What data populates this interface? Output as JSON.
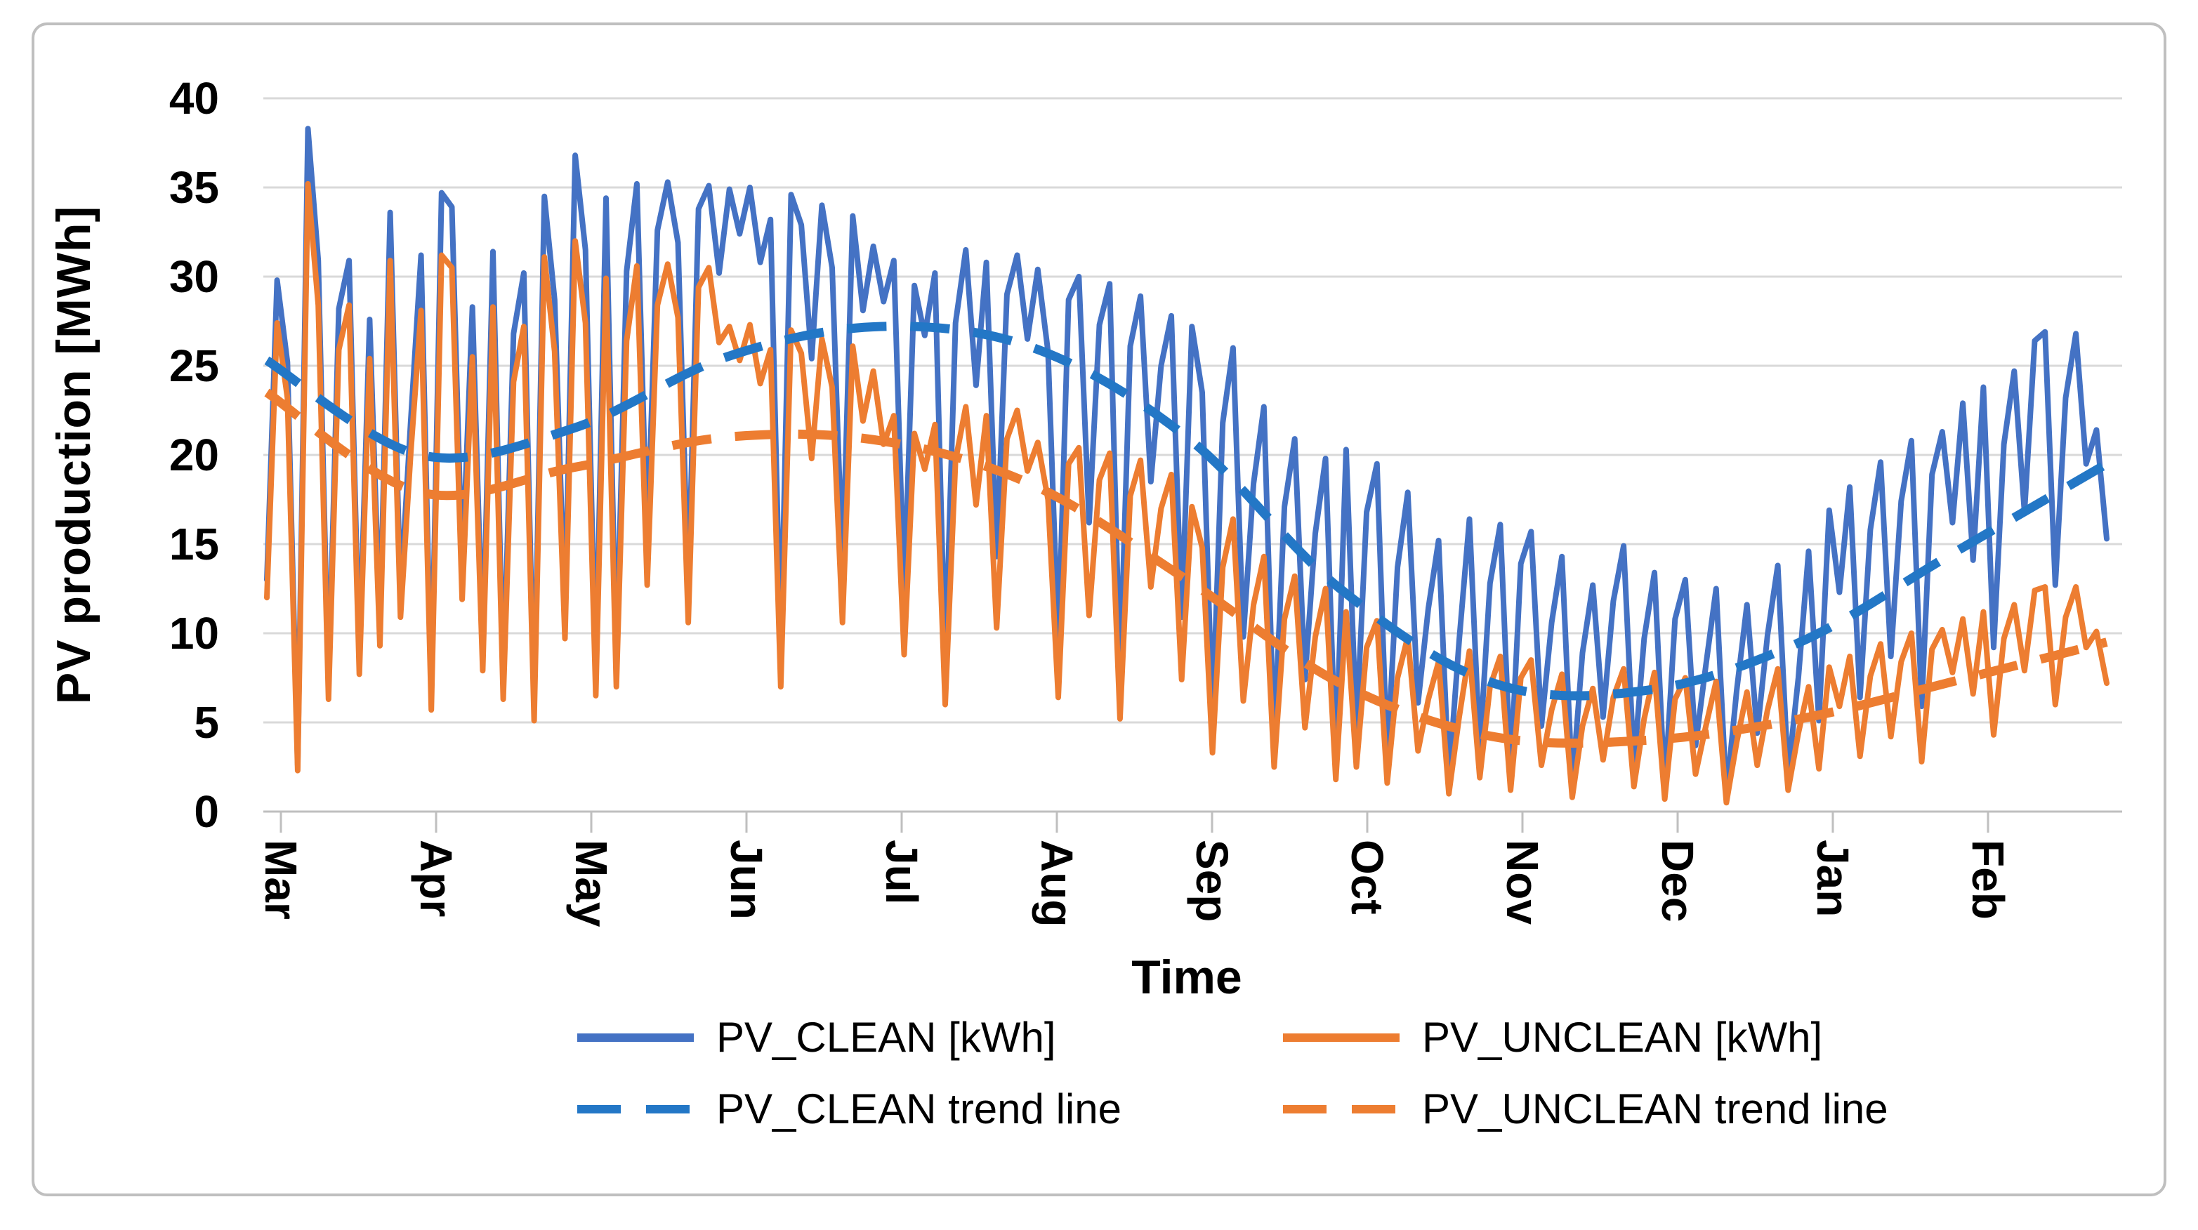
{
  "figure": {
    "background": "#FFFFFF",
    "border_color": "#BFBFBF"
  },
  "y_axis": {
    "title": "PV production [MWh]",
    "ticks": [
      0,
      5,
      10,
      15,
      20,
      25,
      30,
      35,
      40
    ],
    "min": 0,
    "max": 40,
    "grid_color": "#D9D9D9",
    "axis_color": "#BFBFBF",
    "label_color": "#000000"
  },
  "x_axis": {
    "title": "Time",
    "labels": [
      "Mar",
      "Apr",
      "May",
      "Jun",
      "Jul",
      "Aug",
      "Sep",
      "Oct",
      "Nov",
      "Dec",
      "Jan",
      "Feb"
    ],
    "axis_color": "#BFBFBF",
    "label_color": "#000000"
  },
  "legend": {
    "items": [
      {
        "label": "PV_CLEAN [kWh]",
        "color": "#4472C4",
        "dashed": false
      },
      {
        "label": "PV_UNCLEAN [kWh]",
        "color": "#ED7D31",
        "dashed": false
      },
      {
        "label": "PV_CLEAN trend line",
        "color": "#2377C6",
        "dashed": true
      },
      {
        "label": "PV_UNCLEAN trend line",
        "color": "#ED7D31",
        "dashed": true
      }
    ]
  },
  "chart_data": {
    "type": "line",
    "title": "",
    "xlabel": "Time",
    "ylabel": "PV production [MWh]",
    "ylim": [
      0,
      40
    ],
    "grid": true,
    "legend_position": "bottom",
    "categories": [
      "Mar",
      "Apr",
      "May",
      "Jun",
      "Jul",
      "Aug",
      "Sep",
      "Oct",
      "Nov",
      "Dec",
      "Jan",
      "Feb"
    ],
    "points_per_month": 15,
    "series": [
      {
        "name": "PV_CLEAN [kWh]",
        "color": "#4472C4",
        "dashed": false,
        "trend": false,
        "values": [
          13.0,
          29.8,
          25.2,
          2.6,
          38.3,
          30.9,
          7.0,
          28.2,
          30.9,
          8.6,
          27.6,
          10.3,
          33.6,
          12.1,
          21.9,
          31.2,
          6.5,
          34.7,
          33.9,
          13.5,
          28.3,
          9.0,
          31.4,
          7.2,
          26.8,
          30.2,
          5.8,
          34.5,
          28.7,
          11.0,
          36.8,
          31.5,
          7.6,
          34.4,
          8.2,
          30.3,
          35.2,
          14.8,
          32.6,
          35.3,
          31.9,
          12.4,
          33.8,
          35.1,
          30.2,
          34.9,
          32.4,
          35.0,
          30.8,
          33.2,
          9.0,
          34.6,
          32.9,
          25.4,
          34.0,
          30.5,
          13.6,
          33.4,
          28.1,
          31.7,
          28.6,
          30.9,
          12.2,
          29.5,
          26.7,
          30.2,
          8.3,
          27.4,
          31.5,
          23.9,
          30.8,
          14.3,
          29.0,
          31.2,
          26.5,
          30.4,
          25.8,
          9.4,
          28.7,
          30.0,
          16.2,
          27.3,
          29.6,
          7.7,
          26.1,
          28.9,
          18.5,
          25.0,
          27.8,
          10.9,
          27.2,
          23.5,
          5.2,
          21.8,
          26.0,
          9.8,
          18.4,
          22.7,
          3.9,
          17.1,
          20.9,
          7.4,
          15.6,
          19.8,
          2.8,
          20.3,
          4.6,
          16.8,
          19.5,
          2.9,
          13.7,
          17.9,
          6.1,
          11.4,
          15.2,
          1.8,
          9.6,
          16.4,
          3.4,
          12.8,
          16.1,
          2.2,
          13.9,
          15.7,
          4.8,
          10.6,
          14.3,
          1.5,
          8.9,
          12.7,
          5.3,
          11.8,
          14.9,
          2.6,
          9.7,
          13.4,
          1.2,
          10.8,
          13.0,
          3.7,
          8.2,
          12.5,
          0.9,
          6.8,
          11.6,
          4.4,
          9.9,
          13.8,
          2.1,
          7.5,
          14.6,
          5.1,
          16.9,
          12.3,
          18.2,
          6.4,
          15.8,
          19.6,
          8.7,
          17.4,
          20.8,
          5.9,
          18.9,
          21.3,
          16.2,
          22.9,
          14.1,
          23.8,
          9.2,
          20.6,
          24.7,
          16.8,
          26.4,
          26.9,
          12.7,
          23.2,
          26.8,
          19.5,
          21.4,
          15.3
        ]
      },
      {
        "name": "PV_UNCLEAN [kWh]",
        "color": "#ED7D31",
        "dashed": false,
        "trend": false,
        "values": [
          12.0,
          27.4,
          23.2,
          2.3,
          35.2,
          28.4,
          6.3,
          25.9,
          28.4,
          7.7,
          25.4,
          9.3,
          30.9,
          10.9,
          20.1,
          28.1,
          5.7,
          31.2,
          30.5,
          11.9,
          25.5,
          7.9,
          28.3,
          6.3,
          24.1,
          27.2,
          5.1,
          31.1,
          25.8,
          9.7,
          32.0,
          27.4,
          6.5,
          29.9,
          7.0,
          26.4,
          30.6,
          12.7,
          28.4,
          30.7,
          27.7,
          10.6,
          29.4,
          30.5,
          26.3,
          27.2,
          25.3,
          27.3,
          24.0,
          25.9,
          7.0,
          27.0,
          25.7,
          19.8,
          26.5,
          23.8,
          10.6,
          26.1,
          21.9,
          24.7,
          20.6,
          22.2,
          8.8,
          21.2,
          19.2,
          21.7,
          6.0,
          19.7,
          22.7,
          17.2,
          22.2,
          10.3,
          20.9,
          22.5,
          19.1,
          20.7,
          17.5,
          6.4,
          19.5,
          20.4,
          11.0,
          18.6,
          20.1,
          5.2,
          17.7,
          19.7,
          12.6,
          17.0,
          18.9,
          7.4,
          17.1,
          14.8,
          3.3,
          13.7,
          16.4,
          6.2,
          11.6,
          14.3,
          2.5,
          10.8,
          13.2,
          4.7,
          9.8,
          12.5,
          1.8,
          11.2,
          2.5,
          9.2,
          10.7,
          1.6,
          7.5,
          9.8,
          3.4,
          6.3,
          8.4,
          1.0,
          5.3,
          9.0,
          1.9,
          7.0,
          8.7,
          1.2,
          7.5,
          8.5,
          2.6,
          5.7,
          7.7,
          0.8,
          4.8,
          6.9,
          2.9,
          6.4,
          8.0,
          1.4,
          5.2,
          7.8,
          0.7,
          6.3,
          7.5,
          2.1,
          4.8,
          7.3,
          0.5,
          3.9,
          6.7,
          2.6,
          5.7,
          8.0,
          1.2,
          4.4,
          7.0,
          2.4,
          8.1,
          5.9,
          8.7,
          3.1,
          7.6,
          9.4,
          4.2,
          8.4,
          10.0,
          2.8,
          9.1,
          10.2,
          7.8,
          10.8,
          6.6,
          11.2,
          4.3,
          9.7,
          11.6,
          7.9,
          12.4,
          12.6,
          6.0,
          10.9,
          12.6,
          9.2,
          10.1,
          7.2
        ]
      },
      {
        "name": "PV_CLEAN trend line",
        "color": "#2377C6",
        "dashed": true,
        "trend": true,
        "values": [
          25.3,
          20.0,
          21.5,
          25.5,
          27.2,
          26.0,
          21.0,
          12.5,
          7.2,
          6.8,
          9.5,
          14.5,
          19.5
        ]
      },
      {
        "name": "PV_UNCLEAN trend line",
        "color": "#ED7D31",
        "dashed": true,
        "trend": true,
        "values": [
          23.5,
          17.9,
          19.3,
          21.0,
          20.8,
          18.3,
          13.0,
          7.2,
          4.2,
          4.0,
          5.2,
          7.3,
          9.5
        ]
      }
    ]
  }
}
